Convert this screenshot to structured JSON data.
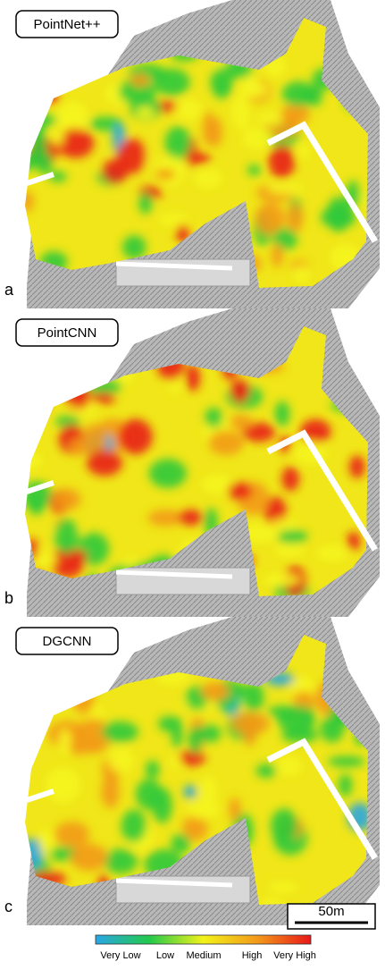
{
  "panels": [
    {
      "title": "PointNet++",
      "letter": "a"
    },
    {
      "title": "PointCNN",
      "letter": "b"
    },
    {
      "title": "DGCNN",
      "letter": "c"
    }
  ],
  "scale_bar": "50m",
  "colorbar": {
    "labels": [
      "Very Low",
      "Low",
      "Medium",
      "High",
      "Very High"
    ]
  }
}
